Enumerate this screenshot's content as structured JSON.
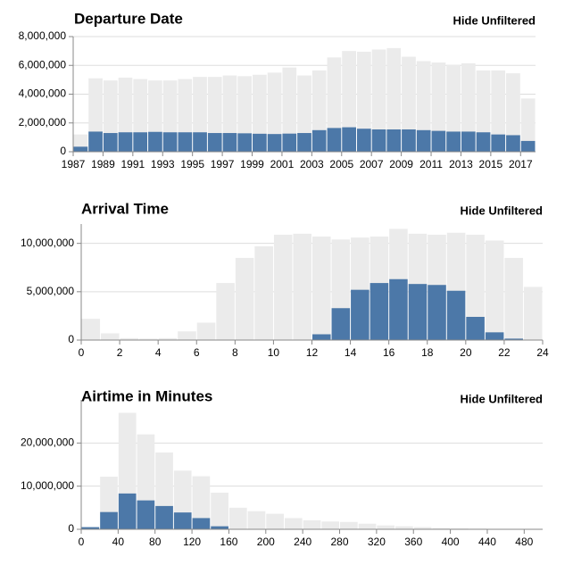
{
  "chart_data": [
    {
      "type": "histogram",
      "title": "Departure Date",
      "button": "Hide Unfiltered",
      "bins": [
        1987,
        1988,
        1989,
        1990,
        1991,
        1992,
        1993,
        1994,
        1995,
        1996,
        1997,
        1998,
        1999,
        2000,
        2001,
        2002,
        2003,
        2004,
        2005,
        2006,
        2007,
        2008,
        2009,
        2010,
        2011,
        2012,
        2013,
        2014,
        2015,
        2016,
        2017,
        2018
      ],
      "series": [
        {
          "color": "#ebebeb",
          "values": [
            1200000,
            5100000,
            4950000,
            5150000,
            5050000,
            4950000,
            4950000,
            5050000,
            5200000,
            5200000,
            5300000,
            5250000,
            5350000,
            5500000,
            5850000,
            5300000,
            5650000,
            6550000,
            7000000,
            6950000,
            7100000,
            7200000,
            6600000,
            6300000,
            6200000,
            6050000,
            6150000,
            5650000,
            5650000,
            5450000,
            3700000
          ]
        },
        {
          "color": "#4c78a8",
          "values": [
            350000,
            1400000,
            1300000,
            1350000,
            1350000,
            1380000,
            1350000,
            1350000,
            1350000,
            1300000,
            1300000,
            1280000,
            1250000,
            1230000,
            1260000,
            1300000,
            1500000,
            1650000,
            1700000,
            1600000,
            1550000,
            1550000,
            1550000,
            1500000,
            1450000,
            1400000,
            1400000,
            1350000,
            1200000,
            1150000,
            750000
          ]
        }
      ],
      "xlim": [
        1987,
        2018
      ],
      "xticks": [
        1987,
        1989,
        1991,
        1993,
        1995,
        1997,
        1999,
        2001,
        2003,
        2005,
        2007,
        2009,
        2011,
        2013,
        2015,
        2017
      ],
      "ylim": [
        0,
        8000000
      ],
      "yticks": [
        0,
        {
          "value": 2000000,
          "label": "2,000,000"
        },
        {
          "value": 4000000,
          "label": "4,000,000"
        },
        {
          "value": 6000000,
          "label": "6,000,000"
        },
        {
          "value": 8000000,
          "label": "8,000,000"
        }
      ],
      "grid": true
    },
    {
      "type": "histogram",
      "title": "Arrival Time",
      "button": "Hide Unfiltered",
      "bins": [
        0,
        1,
        2,
        3,
        4,
        5,
        6,
        7,
        8,
        9,
        10,
        11,
        12,
        13,
        14,
        15,
        16,
        17,
        18,
        19,
        20,
        21,
        22,
        23,
        24
      ],
      "series": [
        {
          "color": "#ebebeb",
          "values": [
            2200000,
            700000,
            200000,
            150000,
            200000,
            900000,
            1800000,
            5900000,
            8500000,
            9700000,
            10900000,
            11000000,
            10700000,
            10400000,
            10600000,
            10700000,
            11500000,
            11000000,
            10900000,
            11100000,
            10900000,
            10300000,
            8500000,
            5500000
          ]
        },
        {
          "color": "#4c78a8",
          "values": [
            0,
            0,
            0,
            0,
            0,
            0,
            0,
            0,
            0,
            0,
            0,
            0,
            600000,
            3300000,
            5200000,
            5900000,
            6300000,
            5800000,
            5700000,
            5100000,
            2400000,
            800000,
            150000,
            0
          ]
        }
      ],
      "xlim": [
        0,
        24
      ],
      "xticks": [
        0,
        2,
        4,
        6,
        8,
        10,
        12,
        14,
        16,
        18,
        20,
        22,
        24
      ],
      "ylim": [
        0,
        12000000
      ],
      "yticks": [
        0,
        {
          "value": 5000000,
          "label": "5,000,000"
        },
        {
          "value": 10000000,
          "label": "10,000,000"
        }
      ],
      "grid": true
    },
    {
      "type": "histogram",
      "title": "Airtime in Minutes",
      "button": "Hide Unfiltered",
      "bins": [
        0,
        20,
        40,
        60,
        80,
        100,
        120,
        140,
        160,
        180,
        200,
        220,
        240,
        260,
        280,
        300,
        320,
        340,
        360,
        380,
        400,
        420,
        440,
        460,
        480,
        500
      ],
      "series": [
        {
          "color": "#ebebeb",
          "values": [
            500000,
            12200000,
            27000000,
            22000000,
            17800000,
            13600000,
            12300000,
            8500000,
            5000000,
            4200000,
            3600000,
            2600000,
            2100000,
            1800000,
            1700000,
            1300000,
            900000,
            700000,
            500000,
            300000,
            200000,
            150000,
            100000,
            50000,
            50000
          ]
        },
        {
          "color": "#4c78a8",
          "values": [
            500000,
            4000000,
            8300000,
            6700000,
            5400000,
            3900000,
            2600000,
            700000,
            0,
            0,
            0,
            0,
            0,
            0,
            0,
            0,
            0,
            0,
            0,
            0,
            0,
            0,
            0,
            0,
            0
          ]
        }
      ],
      "xlim": [
        0,
        500
      ],
      "xticks": [
        0,
        40,
        80,
        120,
        160,
        200,
        240,
        280,
        320,
        360,
        400,
        440,
        480
      ],
      "ylim": [
        0,
        30000000
      ],
      "yticks": [
        0,
        {
          "value": 10000000,
          "label": "10,000,000"
        },
        {
          "value": 20000000,
          "label": "20,000,000"
        }
      ],
      "grid": true
    }
  ]
}
